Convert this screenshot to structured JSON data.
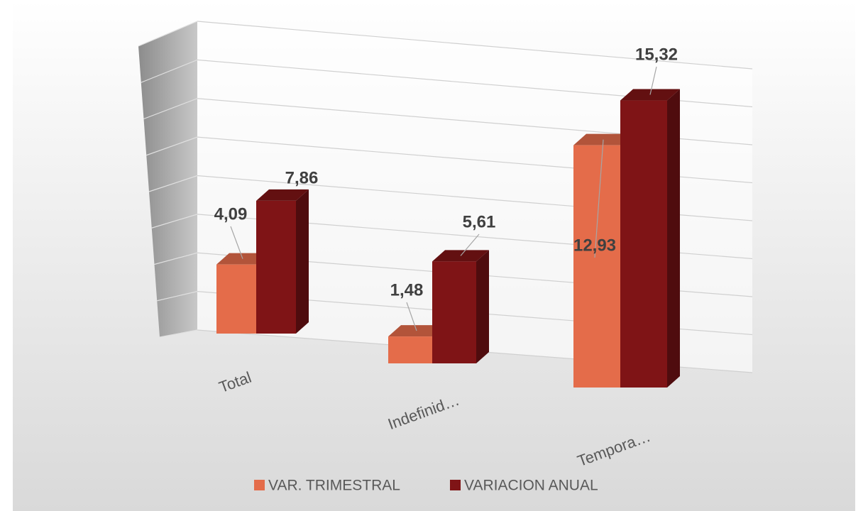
{
  "chart_data": {
    "type": "bar3d",
    "categories": [
      "Total",
      "Indefinid…",
      "Tempora…"
    ],
    "series": [
      {
        "name": "VAR. TRIMESTRAL",
        "color": "#e46c4a",
        "values": [
          4.09,
          1.48,
          12.93
        ],
        "value_labels": [
          "4,09",
          "1,48",
          "12,93"
        ]
      },
      {
        "name": "VARIACION ANUAL",
        "color": "#7f1416",
        "values": [
          7.86,
          5.61,
          15.32
        ],
        "value_labels": [
          "7,86",
          "5,61",
          "15,32"
        ]
      }
    ],
    "ylim": [
      0,
      16
    ],
    "yticks": [
      0,
      2,
      4,
      6,
      8,
      10,
      12,
      14,
      16
    ],
    "grid": true,
    "legend": "bottom"
  }
}
